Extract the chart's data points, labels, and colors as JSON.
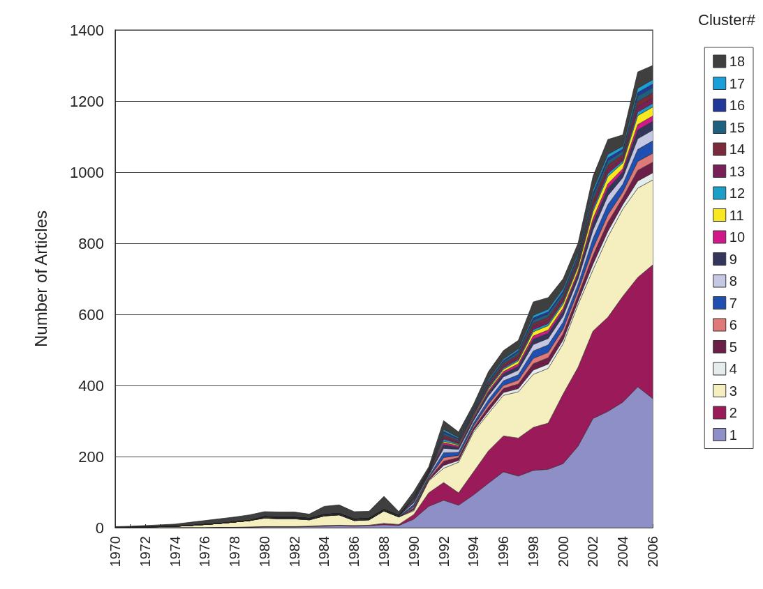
{
  "chart_data": {
    "type": "area",
    "stacked": true,
    "ylabel": "Number of Articles",
    "legend_title": "Cluster#",
    "legend": "right",
    "grid": "y",
    "ylim": [
      0,
      1400
    ],
    "yticks": [
      0,
      200,
      400,
      600,
      800,
      1000,
      1200,
      1400
    ],
    "categories": [
      "1970",
      null,
      "1972",
      null,
      "1974",
      null,
      "1976",
      null,
      "1978",
      null,
      "1980",
      null,
      "1982",
      null,
      "1984",
      null,
      "1986",
      null,
      "1988",
      null,
      "1990",
      null,
      "1992",
      null,
      "1994",
      null,
      "1996",
      null,
      "1998",
      null,
      "2000",
      null,
      "2002",
      null,
      "2004",
      null,
      "2006"
    ],
    "series": [
      {
        "name": "1",
        "color": "#8f8fc8",
        "values": [
          0,
          0,
          0,
          0,
          0,
          0,
          0,
          1,
          1,
          1,
          2,
          2,
          2,
          3,
          4,
          5,
          4,
          5,
          8,
          6,
          24,
          60,
          77,
          63,
          92,
          125,
          157,
          145,
          161,
          164,
          180,
          229,
          307,
          327,
          353,
          396,
          363
        ]
      },
      {
        "name": "2",
        "color": "#9a1a5a",
        "values": [
          0,
          0,
          0,
          0,
          0,
          0,
          0,
          0,
          0,
          1,
          1,
          1,
          1,
          1,
          2,
          2,
          2,
          2,
          4,
          3,
          13,
          38,
          50,
          35,
          65,
          91,
          101,
          107,
          121,
          130,
          196,
          222,
          246,
          265,
          298,
          308,
          376
        ]
      },
      {
        "name": "3",
        "color": "#f5efc0",
        "values": [
          1,
          1,
          2,
          3,
          4,
          6,
          9,
          11,
          15,
          18,
          24,
          22,
          22,
          18,
          27,
          29,
          14,
          15,
          35,
          21,
          10,
          33,
          40,
          86,
          111,
          105,
          114,
          130,
          149,
          154,
          141,
          176,
          172,
          226,
          245,
          251,
          239
        ]
      },
      {
        "name": "4",
        "color": "#e4ecec",
        "values": [
          0,
          0,
          0,
          0,
          0,
          0,
          0,
          0,
          0,
          0,
          0,
          0,
          0,
          0,
          0,
          0,
          0,
          0,
          0,
          0,
          3,
          2,
          8,
          5,
          5,
          7,
          8,
          9,
          12,
          12,
          11,
          10,
          16,
          16,
          13,
          20,
          20
        ]
      },
      {
        "name": "5",
        "color": "#6a1e48",
        "values": [
          0,
          0,
          0,
          0,
          0,
          0,
          0,
          0,
          0,
          0,
          0,
          0,
          0,
          0,
          0,
          0,
          0,
          0,
          0,
          0,
          5,
          4,
          12,
          8,
          7,
          11,
          11,
          13,
          18,
          18,
          17,
          16,
          24,
          25,
          19,
          30,
          30
        ]
      },
      {
        "name": "6",
        "color": "#e07a78",
        "values": [
          0,
          0,
          0,
          0,
          0,
          0,
          0,
          0,
          0,
          0,
          0,
          0,
          0,
          0,
          0,
          0,
          0,
          0,
          0,
          0,
          4,
          3,
          10,
          6,
          6,
          9,
          9,
          11,
          15,
          15,
          14,
          13,
          20,
          21,
          16,
          25,
          25
        ]
      },
      {
        "name": "7",
        "color": "#1f4fb0",
        "values": [
          0,
          0,
          0,
          0,
          0,
          0,
          0,
          0,
          0,
          0,
          2,
          2,
          2,
          2,
          2,
          2,
          2,
          2,
          2,
          2,
          6,
          4,
          14,
          9,
          8,
          12,
          13,
          15,
          21,
          21,
          19,
          18,
          28,
          29,
          22,
          34,
          35
        ]
      },
      {
        "name": "8",
        "color": "#c4c8e4",
        "values": [
          0,
          0,
          0,
          0,
          0,
          0,
          0,
          0,
          0,
          0,
          1,
          1,
          1,
          1,
          1,
          1,
          1,
          1,
          1,
          1,
          5,
          4,
          12,
          8,
          7,
          11,
          11,
          13,
          18,
          18,
          17,
          16,
          24,
          25,
          19,
          30,
          30
        ]
      },
      {
        "name": "9",
        "color": "#33365a",
        "values": [
          0,
          0,
          0,
          0,
          0,
          0,
          0,
          0,
          0,
          0,
          0,
          0,
          0,
          0,
          0,
          0,
          0,
          0,
          0,
          0,
          4,
          3,
          10,
          6,
          6,
          9,
          9,
          11,
          15,
          15,
          14,
          13,
          20,
          21,
          16,
          25,
          25
        ]
      },
      {
        "name": "10",
        "color": "#d0188a",
        "values": [
          0,
          0,
          0,
          0,
          0,
          0,
          0,
          0,
          0,
          0,
          1,
          1,
          1,
          1,
          1,
          1,
          1,
          1,
          1,
          1,
          2,
          2,
          6,
          4,
          4,
          5,
          6,
          7,
          9,
          9,
          8,
          8,
          12,
          12,
          9,
          15,
          15
        ]
      },
      {
        "name": "11",
        "color": "#f8e820",
        "values": [
          0,
          0,
          0,
          0,
          0,
          0,
          0,
          0,
          0,
          0,
          0,
          0,
          0,
          0,
          0,
          0,
          0,
          0,
          0,
          0,
          2,
          1,
          4,
          3,
          3,
          5,
          6,
          8,
          12,
          12,
          12,
          12,
          20,
          21,
          16,
          25,
          25
        ]
      },
      {
        "name": "12",
        "color": "#1aa0c8",
        "values": [
          0,
          0,
          0,
          0,
          0,
          0,
          0,
          0,
          0,
          0,
          0,
          0,
          0,
          0,
          0,
          0,
          0,
          0,
          0,
          0,
          2,
          1,
          6,
          3,
          3,
          4,
          4,
          4,
          6,
          6,
          6,
          5,
          8,
          8,
          6,
          10,
          10
        ]
      },
      {
        "name": "13",
        "color": "#7a2058",
        "values": [
          0,
          0,
          0,
          0,
          0,
          0,
          0,
          0,
          0,
          0,
          0,
          0,
          0,
          0,
          0,
          0,
          0,
          0,
          0,
          0,
          2,
          2,
          6,
          4,
          4,
          5,
          6,
          7,
          9,
          9,
          8,
          8,
          12,
          12,
          9,
          15,
          15
        ]
      },
      {
        "name": "14",
        "color": "#7a2a3a",
        "values": [
          0,
          0,
          0,
          0,
          0,
          0,
          0,
          0,
          0,
          0,
          0,
          0,
          0,
          0,
          0,
          0,
          0,
          0,
          0,
          0,
          2,
          2,
          6,
          4,
          4,
          5,
          6,
          7,
          9,
          9,
          8,
          8,
          12,
          12,
          9,
          15,
          15
        ]
      },
      {
        "name": "15",
        "color": "#1e6080",
        "values": [
          0,
          0,
          0,
          0,
          0,
          0,
          0,
          0,
          0,
          0,
          0,
          0,
          0,
          0,
          0,
          0,
          0,
          0,
          0,
          0,
          2,
          2,
          6,
          4,
          3,
          5,
          5,
          7,
          9,
          9,
          8,
          8,
          12,
          12,
          9,
          15,
          15
        ]
      },
      {
        "name": "16",
        "color": "#20389a",
        "values": [
          0,
          0,
          0,
          0,
          0,
          0,
          0,
          0,
          0,
          0,
          0,
          0,
          0,
          0,
          0,
          0,
          0,
          0,
          0,
          0,
          2,
          1,
          4,
          3,
          3,
          4,
          4,
          4,
          6,
          6,
          6,
          5,
          8,
          8,
          6,
          10,
          10
        ]
      },
      {
        "name": "17",
        "color": "#1aa0d8",
        "values": [
          0,
          0,
          0,
          0,
          0,
          0,
          0,
          0,
          0,
          0,
          0,
          0,
          0,
          0,
          0,
          0,
          0,
          0,
          0,
          0,
          2,
          1,
          5,
          3,
          3,
          4,
          4,
          5,
          7,
          7,
          7,
          6,
          9,
          10,
          8,
          12,
          12
        ]
      },
      {
        "name": "18",
        "color": "#3f3f3f",
        "values": [
          2,
          3,
          4,
          5,
          6,
          9,
          11,
          13,
          14,
          16,
          14,
          15,
          15,
          12,
          23,
          24,
          21,
          20,
          37,
          11,
          12,
          8,
          25,
          15,
          13,
          22,
          24,
          24,
          38,
          33,
          28,
          27,
          38,
          42,
          32,
          46,
          40
        ]
      }
    ]
  }
}
